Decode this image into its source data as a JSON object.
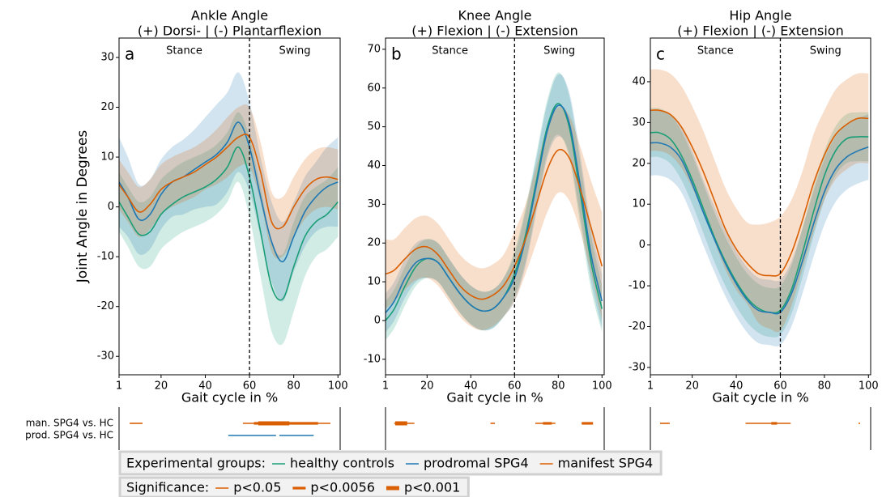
{
  "chart_data": [
    {
      "type": "line",
      "title": "Ankle Angle",
      "subtitle": "(+) Dorsi- | (-) Plantarflexion",
      "label": "a",
      "ylabel": "Joint Angle in Degrees",
      "xlabel": "Gait cycle in %",
      "phases": [
        "Stance",
        "Swing"
      ],
      "phase_boundary": 60,
      "x": [
        1,
        5,
        10,
        15,
        20,
        25,
        30,
        35,
        40,
        45,
        50,
        55,
        60,
        65,
        70,
        75,
        80,
        85,
        90,
        95,
        100
      ],
      "xlim": [
        1,
        101
      ],
      "xticks": [
        1,
        20,
        40,
        60,
        80,
        100
      ],
      "ylim": [
        -33.7,
        33.9
      ],
      "yticks": [
        -30,
        -20,
        -10,
        0,
        10,
        20,
        30
      ],
      "series": [
        {
          "name": "healthy controls",
          "color": "#1b9e77",
          "values": [
            1,
            -2,
            -5.5,
            -5,
            -1.5,
            0.5,
            2,
            3,
            4,
            5.5,
            8,
            12,
            6,
            -5,
            -16,
            -18.5,
            -12,
            -6,
            -3,
            -1.5,
            1
          ],
          "sd": [
            6,
            6,
            6.5,
            7,
            7,
            7,
            7,
            7,
            7,
            7,
            7,
            7,
            8,
            9,
            9,
            9,
            9,
            8,
            7,
            7,
            7
          ]
        },
        {
          "name": "prodromal SPG4",
          "color": "#1f78b4",
          "values": [
            5,
            2,
            -2.5,
            -1.5,
            2.5,
            5,
            6,
            7.5,
            9,
            10.5,
            13,
            17,
            12,
            2,
            -7,
            -11,
            -6,
            -1,
            2,
            4,
            5
          ],
          "sd": [
            9,
            8,
            7,
            7,
            7,
            7,
            7.5,
            8,
            9,
            10,
            10,
            10,
            9,
            8,
            8,
            8,
            7,
            7,
            7,
            8,
            9
          ]
        },
        {
          "name": "manifest SPG4",
          "color": "#d95f02",
          "values": [
            4.5,
            2,
            -1,
            0.5,
            3.5,
            5,
            6,
            7,
            8.5,
            10,
            12,
            14,
            14,
            7,
            -3,
            -4,
            0,
            3.5,
            5.5,
            6,
            5.5
          ],
          "sd": [
            5,
            5,
            5,
            5,
            5,
            5,
            5,
            5,
            5,
            5.5,
            6,
            6,
            6,
            6,
            6,
            6,
            6,
            6,
            6,
            6,
            6
          ]
        }
      ],
      "significance": [
        {
          "segments": [
            {
              "start": 5.8,
              "end": 11.6,
              "level": 0
            },
            {
              "start": 57,
              "end": 96.6,
              "level": 0
            },
            {
              "start": 62,
              "end": 91,
              "level": 1
            },
            {
              "start": 64,
              "end": 78,
              "level": 2
            }
          ]
        },
        {
          "segments": [
            {
              "start": 50.4,
              "end": 72,
              "level": 0
            },
            {
              "start": 73.5,
              "end": 89,
              "level": 0
            }
          ]
        }
      ]
    },
    {
      "type": "line",
      "title": "Knee Angle",
      "subtitle": "(+) Flexion | (-) Extension",
      "label": "b",
      "xlabel": "Gait cycle in %",
      "phases": [
        "Stance",
        "Swing"
      ],
      "phase_boundary": 60,
      "x": [
        1,
        5,
        10,
        15,
        20,
        25,
        30,
        35,
        40,
        45,
        50,
        55,
        60,
        65,
        70,
        75,
        80,
        85,
        90,
        95,
        100
      ],
      "xlim": [
        1,
        101
      ],
      "xticks": [
        1,
        20,
        40,
        60,
        80,
        100
      ],
      "ylim": [
        -14,
        72.9
      ],
      "yticks": [
        -10,
        0,
        10,
        20,
        30,
        40,
        50,
        60,
        70
      ],
      "series": [
        {
          "name": "healthy controls",
          "color": "#1b9e77",
          "values": [
            0,
            3,
            9,
            14,
            16,
            15,
            11,
            7,
            4,
            2.5,
            3,
            6,
            12,
            22,
            36,
            50,
            56,
            50,
            33,
            15,
            3
          ],
          "sd": [
            5,
            5,
            5,
            5,
            5,
            5,
            5,
            5,
            5,
            5,
            5,
            5,
            6,
            7,
            7,
            7,
            8,
            8,
            8,
            7,
            6
          ]
        },
        {
          "name": "prodromal SPG4",
          "color": "#1f78b4",
          "values": [
            2,
            5,
            11,
            15,
            16,
            15,
            11,
            7,
            4,
            2.5,
            3,
            6,
            11,
            21,
            35,
            49,
            55.5,
            51,
            35,
            17,
            5
          ],
          "sd": [
            5,
            5,
            5,
            5,
            5,
            5,
            5,
            5,
            5,
            5,
            5,
            5,
            6,
            7,
            7,
            7,
            8,
            8,
            8,
            7,
            7
          ]
        },
        {
          "name": "manifest SPG4",
          "color": "#d95f02",
          "values": [
            12,
            13,
            16,
            18.5,
            19,
            17,
            13,
            9,
            6.5,
            5.5,
            6.5,
            9,
            14,
            21,
            30,
            39,
            44,
            42,
            34,
            24,
            14
          ],
          "sd": [
            9,
            8,
            8,
            8,
            8,
            8,
            8,
            8,
            8,
            8,
            8,
            8,
            9,
            9,
            10,
            11,
            11,
            11,
            11,
            12,
            14
          ]
        }
      ],
      "significance": [
        {
          "segments": [
            {
              "start": 5,
              "end": 14.2,
              "level": 0
            },
            {
              "start": 5.4,
              "end": 10.9,
              "level": 2
            },
            {
              "start": 49,
              "end": 51,
              "level": 0
            },
            {
              "start": 69.5,
              "end": 78.7,
              "level": 0
            },
            {
              "start": 73,
              "end": 77,
              "level": 1
            },
            {
              "start": 90.7,
              "end": 95.9,
              "level": 1
            }
          ]
        },
        {
          "segments": []
        }
      ]
    },
    {
      "type": "line",
      "title": "Hip Angle",
      "subtitle": "(+) Flexion | (-) Extension",
      "label": "c",
      "xlabel": "Gait cycle in %",
      "phases": [
        "Stance",
        "Swing"
      ],
      "phase_boundary": 60,
      "x": [
        1,
        5,
        10,
        15,
        20,
        25,
        30,
        35,
        40,
        45,
        50,
        55,
        60,
        65,
        70,
        75,
        80,
        85,
        90,
        95,
        100
      ],
      "xlim": [
        1,
        101
      ],
      "xticks": [
        1,
        20,
        40,
        60,
        80,
        100
      ],
      "ylim": [
        -31.8,
        50.7
      ],
      "yticks": [
        -30,
        -20,
        -10,
        0,
        10,
        20,
        30,
        40
      ],
      "series": [
        {
          "name": "healthy controls",
          "color": "#1b9e77",
          "values": [
            27.5,
            27.5,
            26,
            22,
            16,
            9,
            2,
            -4,
            -9,
            -13,
            -15.5,
            -16.5,
            -16,
            -11,
            -2,
            8,
            17,
            23,
            26,
            26.5,
            26.5
          ],
          "sd": [
            6,
            6,
            6,
            6,
            6,
            6,
            6,
            6,
            6,
            6,
            6,
            6,
            6,
            6,
            6,
            6,
            6,
            6,
            6,
            6,
            6
          ]
        },
        {
          "name": "prodromal SPG4",
          "color": "#1f78b4",
          "values": [
            25,
            25,
            24,
            21,
            15,
            8,
            1.5,
            -4.5,
            -9.5,
            -13.5,
            -16,
            -16.5,
            -16.5,
            -12,
            -4,
            5,
            13,
            18.5,
            21.5,
            23,
            24
          ],
          "sd": [
            8,
            8,
            8,
            8,
            8,
            8,
            8,
            8,
            8,
            8,
            8,
            8,
            8,
            8,
            8,
            8,
            8,
            8,
            8,
            8,
            8
          ]
        },
        {
          "name": "manifest SPG4",
          "color": "#d95f02",
          "values": [
            33,
            33,
            32,
            29,
            24,
            18,
            11,
            4,
            -1,
            -4.5,
            -7,
            -7.5,
            -7,
            -2,
            6,
            15,
            22,
            27,
            29.5,
            31,
            31
          ],
          "sd": [
            10,
            10,
            10,
            10,
            10,
            10,
            10,
            10,
            10,
            10,
            12,
            13,
            14,
            13,
            12,
            12,
            11,
            11,
            11,
            11,
            11
          ]
        }
      ],
      "significance": [
        {
          "segments": [
            {
              "start": 5.4,
              "end": 9.8,
              "level": 0
            },
            {
              "start": 44.2,
              "end": 64.7,
              "level": 0
            },
            {
              "start": 55.9,
              "end": 58.5,
              "level": 1
            },
            {
              "start": 95.5,
              "end": 96.2,
              "level": 0
            }
          ]
        },
        {
          "segments": []
        }
      ]
    }
  ],
  "significance_rows": [
    {
      "name": "man. SPG4 vs. HC",
      "color": "#d95f02"
    },
    {
      "name": "prod. SPG4 vs. HC",
      "color": "#1f78b4"
    }
  ],
  "legend": {
    "title": "Experimental groups:"
  },
  "significance_legend": {
    "title": "Significance:",
    "levels": [
      "p<0.05",
      "p<0.0056",
      "p<0.001"
    ],
    "color": "#d95f02"
  }
}
